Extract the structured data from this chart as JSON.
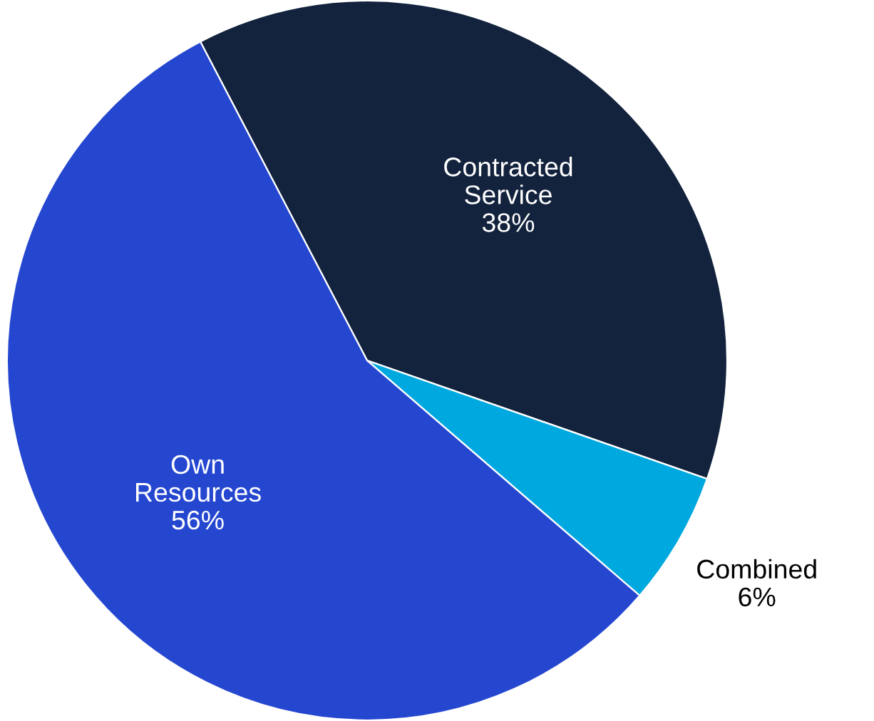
{
  "chart_data": {
    "type": "pie",
    "categories": [
      "Contracted Service",
      "Combined",
      "Own Resources"
    ],
    "values": [
      38,
      6,
      56
    ],
    "value_labels": [
      "38%",
      "6%",
      "56%"
    ],
    "colors": [
      "#13233d",
      "#00a8e0",
      "#2547d0"
    ]
  }
}
